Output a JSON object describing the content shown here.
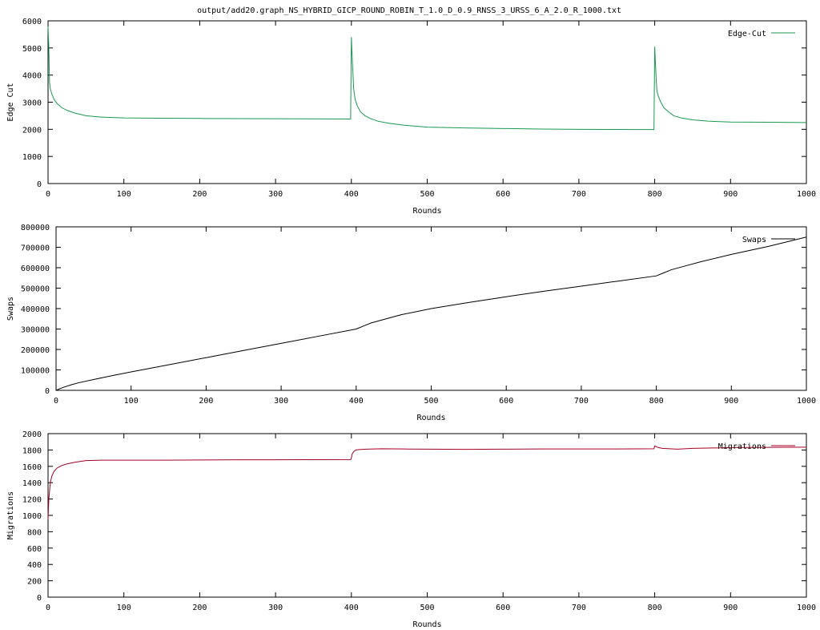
{
  "title": "output/add20.graph_NS_HYBRID_GICP_ROUND_ROBIN_T_1.0_D_0.9_RNSS_3_URSS_6_A_2.0_R_1000.txt",
  "chart_data": [
    {
      "type": "line",
      "xlabel": "Rounds",
      "ylabel": "Edge Cut",
      "xlim": [
        0,
        1000
      ],
      "ylim": [
        0,
        6000
      ],
      "xticks": [
        0,
        100,
        200,
        300,
        400,
        500,
        600,
        700,
        800,
        900,
        1000
      ],
      "yticks": [
        0,
        1000,
        2000,
        3000,
        4000,
        5000,
        6000
      ],
      "grid": false,
      "legend_position": "top-right",
      "series": [
        {
          "name": "Edge-Cut",
          "color": "#1a9850",
          "x": [
            0,
            1,
            2,
            3,
            5,
            8,
            12,
            18,
            25,
            35,
            50,
            70,
            100,
            150,
            200,
            300,
            399,
            400,
            401,
            402,
            403,
            405,
            408,
            412,
            418,
            425,
            435,
            450,
            470,
            500,
            550,
            600,
            650,
            700,
            799,
            800,
            801,
            802,
            803,
            805,
            808,
            812,
            818,
            825,
            835,
            850,
            870,
            900,
            950,
            1000
          ],
          "y": [
            5800,
            5000,
            3700,
            3500,
            3300,
            3100,
            2950,
            2800,
            2700,
            2600,
            2500,
            2450,
            2420,
            2410,
            2400,
            2390,
            2380,
            5400,
            4700,
            4100,
            3500,
            3100,
            2850,
            2650,
            2500,
            2400,
            2300,
            2220,
            2150,
            2080,
            2050,
            2030,
            2010,
            2000,
            1990,
            5050,
            4400,
            3800,
            3400,
            3200,
            3000,
            2800,
            2650,
            2500,
            2420,
            2350,
            2300,
            2270,
            2260,
            2250
          ]
        }
      ]
    },
    {
      "type": "line",
      "xlabel": "Rounds",
      "ylabel": "Swaps",
      "xlim": [
        0,
        1000
      ],
      "ylim": [
        0,
        800000
      ],
      "xticks": [
        0,
        100,
        200,
        300,
        400,
        500,
        600,
        700,
        800,
        900,
        1000
      ],
      "yticks": [
        0,
        100000,
        200000,
        300000,
        400000,
        500000,
        600000,
        700000,
        800000
      ],
      "grid": false,
      "legend_position": "top-right",
      "series": [
        {
          "name": "Swaps",
          "color": "#000000",
          "x": [
            0,
            5,
            10,
            20,
            30,
            50,
            75,
            100,
            150,
            200,
            250,
            300,
            350,
            400,
            410,
            420,
            440,
            460,
            500,
            550,
            600,
            650,
            700,
            750,
            800,
            810,
            820,
            840,
            860,
            900,
            950,
            1000
          ],
          "y": [
            0,
            8000,
            15000,
            27000,
            37000,
            53000,
            72000,
            90000,
            125000,
            160000,
            195000,
            230000,
            265000,
            300000,
            315000,
            330000,
            350000,
            370000,
            400000,
            430000,
            458000,
            485000,
            510000,
            535000,
            560000,
            575000,
            590000,
            610000,
            630000,
            665000,
            705000,
            750000
          ]
        }
      ]
    },
    {
      "type": "line",
      "xlabel": "Rounds",
      "ylabel": "Migrations",
      "xlim": [
        0,
        1000
      ],
      "ylim": [
        0,
        2000
      ],
      "xticks": [
        0,
        100,
        200,
        300,
        400,
        500,
        600,
        700,
        800,
        900,
        1000
      ],
      "yticks": [
        0,
        200,
        400,
        600,
        800,
        1000,
        1200,
        1400,
        1600,
        1800,
        2000
      ],
      "grid": false,
      "legend_position": "top-right",
      "series": [
        {
          "name": "Migrations",
          "color": "#a50026",
          "x": [
            0,
            1,
            2,
            3,
            5,
            8,
            12,
            18,
            25,
            35,
            50,
            70,
            100,
            150,
            200,
            250,
            300,
            350,
            399,
            400,
            401,
            403,
            406,
            410,
            420,
            440,
            470,
            500,
            550,
            600,
            650,
            700,
            750,
            799,
            800,
            802,
            805,
            810,
            820,
            830,
            850,
            880,
            900,
            950,
            1000
          ],
          "y": [
            950,
            1200,
            1300,
            1400,
            1480,
            1540,
            1580,
            1610,
            1630,
            1650,
            1670,
            1675,
            1675,
            1675,
            1678,
            1680,
            1680,
            1682,
            1683,
            1700,
            1750,
            1780,
            1800,
            1805,
            1810,
            1815,
            1812,
            1810,
            1808,
            1810,
            1812,
            1812,
            1812,
            1815,
            1850,
            1840,
            1830,
            1820,
            1815,
            1810,
            1820,
            1825,
            1830,
            1832,
            1835
          ]
        }
      ]
    }
  ]
}
